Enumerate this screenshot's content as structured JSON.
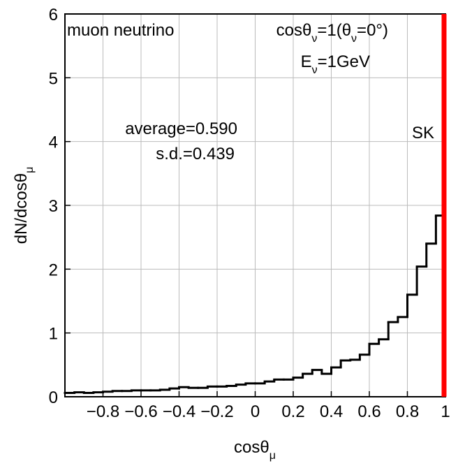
{
  "chart_data": {
    "type": "histogram",
    "x_label": [
      "cosθ",
      "μ"
    ],
    "y_label": [
      "dN/dcosθ",
      "μ"
    ],
    "bins": [
      -1,
      -0.95,
      -0.9,
      -0.85,
      -0.8,
      -0.75,
      -0.7,
      -0.65,
      -0.6,
      -0.55,
      -0.5,
      -0.45,
      -0.4,
      -0.35,
      -0.3,
      -0.25,
      -0.2,
      -0.15,
      -0.1,
      -0.05,
      0,
      0.05,
      0.1,
      0.15,
      0.2,
      0.25,
      0.3,
      0.35,
      0.4,
      0.45,
      0.5,
      0.55,
      0.6,
      0.65,
      0.7,
      0.75,
      0.8,
      0.85,
      0.9,
      0.95,
      1
    ],
    "values": [
      0.06,
      0.07,
      0.06,
      0.07,
      0.08,
      0.09,
      0.09,
      0.1,
      0.1,
      0.1,
      0.11,
      0.13,
      0.15,
      0.14,
      0.14,
      0.16,
      0.16,
      0.17,
      0.19,
      0.21,
      0.21,
      0.24,
      0.27,
      0.27,
      0.3,
      0.36,
      0.42,
      0.36,
      0.46,
      0.57,
      0.58,
      0.66,
      0.83,
      0.9,
      1.17,
      1.25,
      1.6,
      2.04,
      2.4,
      2.84
    ],
    "color": "#000000",
    "xlim": [
      -1,
      1
    ],
    "ylim": [
      0,
      6
    ],
    "xticks": [
      {
        "value": -0.8,
        "label": "−0.8"
      },
      {
        "value": -0.6,
        "label": "−0.6"
      },
      {
        "value": -0.4,
        "label": "−0.4"
      },
      {
        "value": -0.2,
        "label": "−0.2"
      },
      0,
      0.2,
      0.4,
      0.6,
      0.8,
      1
    ],
    "yticks": [
      0,
      1,
      2,
      3,
      4,
      5,
      6
    ],
    "grid": true,
    "marker_line": {
      "x": 1,
      "label": "SK",
      "color": "#ff0000"
    },
    "annotations": [
      {
        "parts": [
          "muon neutrino"
        ]
      },
      {
        "parts": [
          "cosθ",
          "ν",
          "=1(θ",
          "ν",
          "=0°)"
        ]
      },
      {
        "parts": [
          "E",
          "ν",
          "=1GeV"
        ]
      },
      {
        "parts": [
          "average=0.590"
        ]
      },
      {
        "parts": [
          "s.d.=0.439"
        ]
      }
    ]
  }
}
